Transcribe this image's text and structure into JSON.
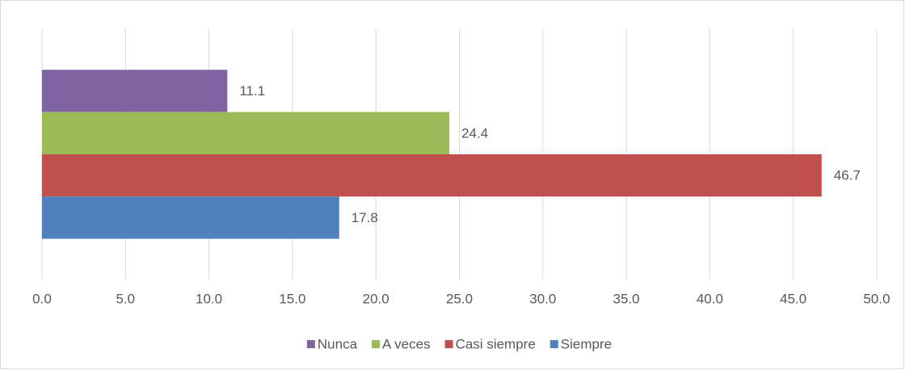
{
  "chart_data": {
    "type": "bar",
    "orientation": "horizontal",
    "series": [
      {
        "name": "Nunca",
        "color": "#8064a2",
        "values": [
          11.1
        ]
      },
      {
        "name": "A veces",
        "color": "#9bbb59",
        "values": [
          24.4
        ]
      },
      {
        "name": "Casi siempre",
        "color": "#c0504d",
        "values": [
          46.7
        ]
      },
      {
        "name": "Siempre",
        "color": "#4f81bd",
        "values": [
          17.8
        ]
      }
    ],
    "xlim": [
      0,
      50
    ],
    "xticks": [
      {
        "value": 0,
        "label": "0.0"
      },
      {
        "value": 5,
        "label": "5.0"
      },
      {
        "value": 10,
        "label": "10.0"
      },
      {
        "value": 15,
        "label": "15.0"
      },
      {
        "value": 20,
        "label": "20.0"
      },
      {
        "value": 25,
        "label": "25.0"
      },
      {
        "value": 30,
        "label": "30.0"
      },
      {
        "value": 35,
        "label": "35.0"
      },
      {
        "value": 40,
        "label": "40.0"
      },
      {
        "value": 45,
        "label": "45.0"
      },
      {
        "value": 50,
        "label": "50.0"
      }
    ],
    "grid": true,
    "legend": "bottom"
  }
}
